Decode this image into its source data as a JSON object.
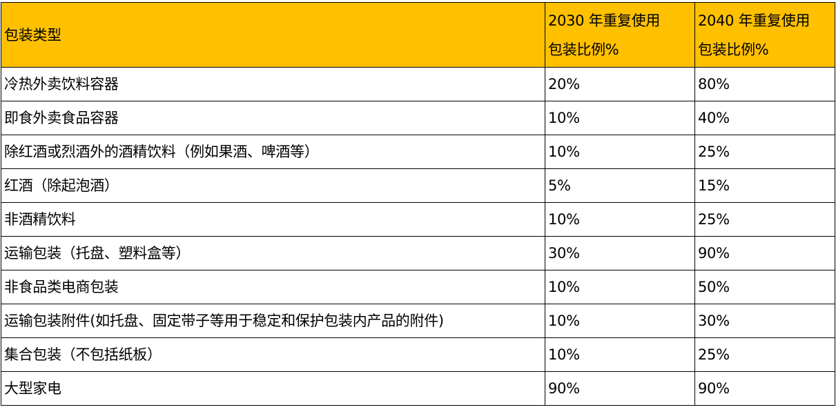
{
  "header": {
    "type": "包装类型",
    "y2030_line1": "2030 年重复使用",
    "y2030_line2": "包装比例%",
    "y2040_line1": "2040 年重复使用",
    "y2040_line2": "包装比例%",
    "color": "#FFC000"
  },
  "rows": [
    {
      "type": "冷热外卖饮料容器",
      "y2030": "20%",
      "y2040": "80%"
    },
    {
      "type": "即食外卖食品容器",
      "y2030": "10%",
      "y2040": "40%"
    },
    {
      "type": "除红酒或烈酒外的酒精饮料（例如果酒、啤酒等）",
      "y2030": "10%",
      "y2040": "25%"
    },
    {
      "type": "红酒（除起泡酒）",
      "y2030": "5%",
      "y2040": "15%"
    },
    {
      "type": "非酒精饮料",
      "y2030": "10%",
      "y2040": "25%"
    },
    {
      "type": "运输包装（托盘、塑料盒等）",
      "y2030": "30%",
      "y2040": "90%"
    },
    {
      "type": "非食品类电商包装",
      "y2030": "10%",
      "y2040": "50%"
    },
    {
      "type": "运输包装附件(如托盘、固定带子等用于稳定和保护包装内产品的附件)",
      "y2030": "10%",
      "y2040": "30%"
    },
    {
      "type": "集合包装（不包括纸板）",
      "y2030": "10%",
      "y2040": "25%"
    },
    {
      "type": "大型家电",
      "y2030": "90%",
      "y2040": "90%"
    }
  ]
}
